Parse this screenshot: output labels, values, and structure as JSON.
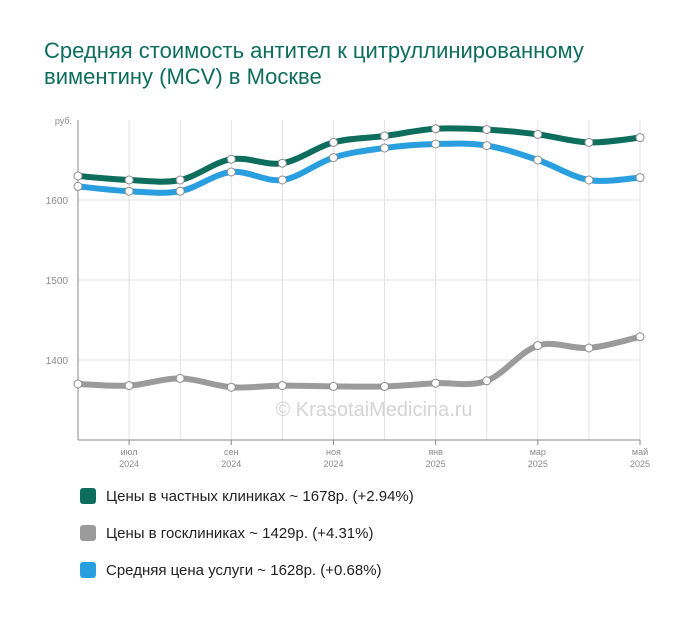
{
  "title": "Средняя стоимость антител к цитруллинированному виментину (MCV) в Москве",
  "watermark": "© KrasotaiMedicina.ru",
  "chart_data": {
    "type": "line",
    "y_unit": "руб.",
    "ylim": [
      1300,
      1700
    ],
    "y_ticks": [
      "1400",
      "1500",
      "1600"
    ],
    "y_tick_values": [
      1400,
      1500,
      1600
    ],
    "x": [
      "2024-06",
      "2024-07",
      "2024-08",
      "2024-09",
      "2024-10",
      "2024-11",
      "2024-12",
      "2025-01",
      "2025-02",
      "2025-03",
      "2025-04",
      "2025-05"
    ],
    "x_tick_labels": [
      {
        "x": "2024-07",
        "month": "июл",
        "year": "2024"
      },
      {
        "x": "2024-09",
        "month": "сен",
        "year": "2024"
      },
      {
        "x": "2024-11",
        "month": "ноя",
        "year": "2024"
      },
      {
        "x": "2025-01",
        "month": "янв",
        "year": "2025"
      },
      {
        "x": "2025-03",
        "month": "мар",
        "year": "2025"
      },
      {
        "x": "2025-05",
        "month": "май",
        "year": "2025"
      }
    ],
    "grid": true,
    "legend_position": "bottom",
    "series": [
      {
        "name": "Цены в частных клиниках ~ 1678р. (+2.94%)",
        "color": "#0e6e5e",
        "values": [
          1630,
          1625,
          1625,
          1651,
          1646,
          1672,
          1680,
          1689,
          1688,
          1682,
          1672,
          1678
        ]
      },
      {
        "name": "Цены в госклиниках ~ 1429р. (+4.31%)",
        "color": "#9b9b9b",
        "values": [
          1370,
          1368,
          1377,
          1366,
          1368,
          1367,
          1367,
          1371,
          1374,
          1418,
          1415,
          1429
        ]
      },
      {
        "name": "Средняя цена услуги ~ 1628р. (+0.68%)",
        "color": "#2a9fe0",
        "values": [
          1617,
          1611,
          1611,
          1635,
          1625,
          1653,
          1665,
          1670,
          1668,
          1650,
          1625,
          1628
        ]
      }
    ]
  }
}
